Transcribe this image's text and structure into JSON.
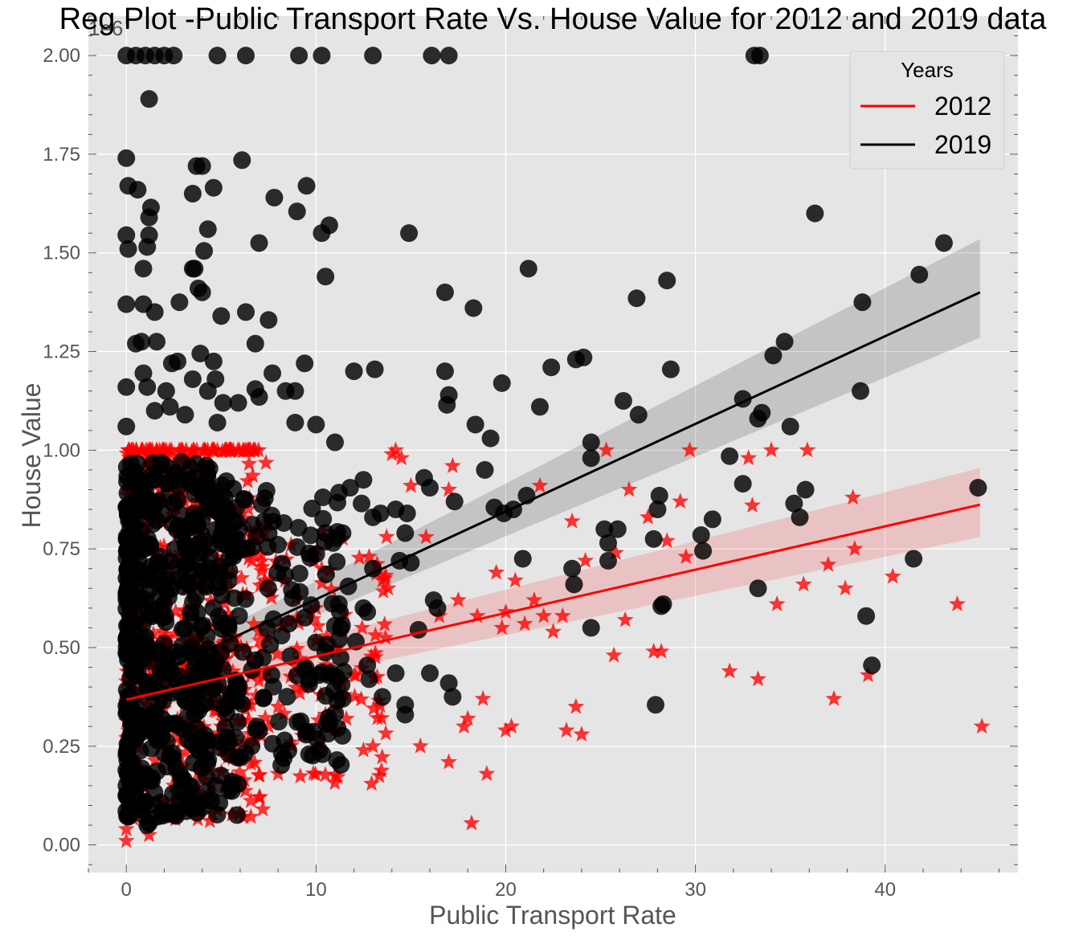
{
  "chart_data": {
    "type": "scatter",
    "title": "Reg Plot -Public Transport Rate Vs. House Value for 2012 and 2019 data",
    "xlabel": "Public Transport Rate",
    "ylabel": "House Value",
    "y_offset_label": "1e6",
    "xlim": [
      -2,
      47
    ],
    "ylim": [
      -70000,
      2100000
    ],
    "xticks": [
      0,
      10,
      20,
      30,
      40
    ],
    "xtick_labels": [
      "0",
      "10",
      "20",
      "30",
      "40"
    ],
    "yticks": [
      0,
      250000,
      500000,
      750000,
      1000000,
      1250000,
      1500000,
      1750000,
      2000000
    ],
    "ytick_labels": [
      "0.00",
      "0.25",
      "0.50",
      "0.75",
      "1.00",
      "1.25",
      "1.50",
      "1.75",
      "2.00"
    ],
    "grid": true,
    "legend": {
      "title": "Years",
      "position": "top-right",
      "entries": [
        "2012",
        "2019"
      ]
    },
    "colors": {
      "2012": "#ff0000",
      "2019": "#000000",
      "background": "#e5e5e5",
      "grid": "#ffffff"
    },
    "series": [
      {
        "name": "2012",
        "marker": "star",
        "color": "#ff0000",
        "regression": {
          "x": [
            0,
            45
          ],
          "y": [
            368000,
            862000
          ],
          "ci_lower": [
            333000,
            780000
          ],
          "ci_upper": [
            400000,
            955000
          ]
        },
        "points": [
          [
            0,
            10000
          ],
          [
            0,
            40000
          ],
          [
            1.2,
            25000
          ],
          [
            2.5,
            150000
          ],
          [
            3,
            200000
          ],
          [
            4,
            240000
          ],
          [
            5,
            300000
          ],
          [
            6,
            80000
          ],
          [
            6.5,
            250000
          ],
          [
            7,
            120000
          ],
          [
            7.5,
            300000
          ],
          [
            8,
            350000
          ],
          [
            8,
            180000
          ],
          [
            9,
            450000
          ],
          [
            9.5,
            280000
          ],
          [
            10,
            600000
          ],
          [
            10.3,
            700000
          ],
          [
            10.5,
            330000
          ],
          [
            11,
            500000
          ],
          [
            11.5,
            380000
          ],
          [
            12,
            430000
          ],
          [
            12.5,
            240000
          ],
          [
            12.8,
            730000
          ],
          [
            13,
            250000
          ],
          [
            13.5,
            670000
          ],
          [
            13.8,
            650000
          ],
          [
            14,
            990000
          ],
          [
            14.2,
            1000000
          ],
          [
            14.5,
            980000
          ],
          [
            15,
            910000
          ],
          [
            15.5,
            250000
          ],
          [
            15.8,
            780000
          ],
          [
            16.5,
            580000
          ],
          [
            17,
            900000
          ],
          [
            17,
            210000
          ],
          [
            17.2,
            960000
          ],
          [
            17.5,
            620000
          ],
          [
            17.8,
            300000
          ],
          [
            18,
            320000
          ],
          [
            18.2,
            55000
          ],
          [
            18.5,
            580000
          ],
          [
            18.8,
            370000
          ],
          [
            19,
            180000
          ],
          [
            19.5,
            690000
          ],
          [
            19.8,
            550000
          ],
          [
            20,
            290000
          ],
          [
            20,
            590000
          ],
          [
            20.3,
            300000
          ],
          [
            20.5,
            670000
          ],
          [
            21,
            560000
          ],
          [
            21.5,
            620000
          ],
          [
            21.8,
            910000
          ],
          [
            22,
            580000
          ],
          [
            22.5,
            540000
          ],
          [
            23,
            580000
          ],
          [
            23.2,
            290000
          ],
          [
            23.5,
            820000
          ],
          [
            23.7,
            350000
          ],
          [
            24,
            280000
          ],
          [
            24.2,
            720000
          ],
          [
            25.3,
            1000000
          ],
          [
            25.7,
            480000
          ],
          [
            25.8,
            740000
          ],
          [
            26.3,
            570000
          ],
          [
            26.5,
            900000
          ],
          [
            27.5,
            830000
          ],
          [
            27.8,
            490000
          ],
          [
            28.2,
            490000
          ],
          [
            28.5,
            770000
          ],
          [
            29.2,
            870000
          ],
          [
            29.5,
            730000
          ],
          [
            29.7,
            1000000
          ],
          [
            31.8,
            440000
          ],
          [
            32.8,
            980000
          ],
          [
            33,
            860000
          ],
          [
            33.3,
            420000
          ],
          [
            34,
            1000000
          ],
          [
            34.3,
            610000
          ],
          [
            35.7,
            660000
          ],
          [
            35.9,
            1000000
          ],
          [
            37,
            710000
          ],
          [
            37.3,
            370000
          ],
          [
            37.9,
            650000
          ],
          [
            38.3,
            880000
          ],
          [
            38.4,
            750000
          ],
          [
            39.1,
            430000
          ],
          [
            40.4,
            680000
          ],
          [
            43.8,
            610000
          ],
          [
            45.1,
            300000
          ]
        ]
      },
      {
        "name": "2019",
        "marker": "circle",
        "color": "#000000",
        "regression": {
          "x": [
            0,
            45
          ],
          "y": [
            400000,
            1400000
          ],
          "ci_lower": [
            380000,
            1285000
          ],
          "ci_upper": [
            420000,
            1535000
          ]
        },
        "points": [
          [
            0,
            2000000
          ],
          [
            0.5,
            2000000
          ],
          [
            1,
            2000000
          ],
          [
            1.5,
            2000000
          ],
          [
            2,
            2000000
          ],
          [
            2.5,
            2000000
          ],
          [
            4.8,
            2000000
          ],
          [
            6.3,
            2000000
          ],
          [
            9.1,
            2000000
          ],
          [
            10.3,
            2000000
          ],
          [
            13,
            2000000
          ],
          [
            16.1,
            2000000
          ],
          [
            17,
            2000000
          ],
          [
            33.1,
            2000000
          ],
          [
            33.4,
            2000000
          ],
          [
            1.2,
            1890000
          ],
          [
            0,
            1740000
          ],
          [
            3.7,
            1720000
          ],
          [
            4,
            1720000
          ],
          [
            6.1,
            1735000
          ],
          [
            0.1,
            1670000
          ],
          [
            0.6,
            1660000
          ],
          [
            3.5,
            1650000
          ],
          [
            4.6,
            1665000
          ],
          [
            7.8,
            1640000
          ],
          [
            9.5,
            1670000
          ],
          [
            1.3,
            1615000
          ],
          [
            1.2,
            1590000
          ],
          [
            9,
            1605000
          ],
          [
            0,
            1545000
          ],
          [
            1.2,
            1545000
          ],
          [
            4.3,
            1560000
          ],
          [
            10.3,
            1550000
          ],
          [
            10.7,
            1570000
          ],
          [
            14.9,
            1550000
          ],
          [
            0.1,
            1510000
          ],
          [
            1.1,
            1515000
          ],
          [
            4.1,
            1505000
          ],
          [
            7,
            1525000
          ],
          [
            0.9,
            1460000
          ],
          [
            3.5,
            1460000
          ],
          [
            3.6,
            1460000
          ],
          [
            10.5,
            1440000
          ],
          [
            21.2,
            1460000
          ],
          [
            0,
            1370000
          ],
          [
            0.9,
            1370000
          ],
          [
            1.5,
            1350000
          ],
          [
            2.8,
            1375000
          ],
          [
            3.8,
            1410000
          ],
          [
            4,
            1400000
          ],
          [
            5,
            1340000
          ],
          [
            6.3,
            1350000
          ],
          [
            7.5,
            1330000
          ],
          [
            16.8,
            1400000
          ],
          [
            18.3,
            1360000
          ],
          [
            26.9,
            1385000
          ],
          [
            28.5,
            1430000
          ],
          [
            38.8,
            1375000
          ],
          [
            41.8,
            1445000
          ],
          [
            43.1,
            1525000
          ],
          [
            36.3,
            1600000
          ],
          [
            0.5,
            1270000
          ],
          [
            0.8,
            1275000
          ],
          [
            1.6,
            1275000
          ],
          [
            3.9,
            1245000
          ],
          [
            6.8,
            1270000
          ],
          [
            4.6,
            1225000
          ],
          [
            2.4,
            1220000
          ],
          [
            2.7,
            1225000
          ],
          [
            9.4,
            1220000
          ],
          [
            12,
            1200000
          ],
          [
            13.1,
            1205000
          ],
          [
            16.8,
            1200000
          ],
          [
            22.4,
            1210000
          ],
          [
            23.7,
            1230000
          ],
          [
            24.1,
            1235000
          ],
          [
            28.7,
            1205000
          ],
          [
            34.1,
            1240000
          ],
          [
            34.7,
            1275000
          ],
          [
            0,
            1160000
          ],
          [
            0.9,
            1195000
          ],
          [
            1.1,
            1160000
          ],
          [
            2.1,
            1150000
          ],
          [
            3.5,
            1180000
          ],
          [
            4.3,
            1150000
          ],
          [
            4.7,
            1180000
          ],
          [
            5.1,
            1120000
          ],
          [
            5.9,
            1120000
          ],
          [
            6.8,
            1155000
          ],
          [
            7.0,
            1135000
          ],
          [
            7.7,
            1195000
          ],
          [
            8.4,
            1150000
          ],
          [
            8.9,
            1150000
          ],
          [
            16.9,
            1115000
          ],
          [
            17,
            1140000
          ],
          [
            19.8,
            1170000
          ],
          [
            21.8,
            1110000
          ],
          [
            26.2,
            1125000
          ],
          [
            27,
            1090000
          ],
          [
            32.5,
            1130000
          ],
          [
            33.3,
            1080000
          ],
          [
            33.5,
            1095000
          ],
          [
            35,
            1060000
          ],
          [
            38.7,
            1150000
          ],
          [
            0,
            1060000
          ],
          [
            1.5,
            1100000
          ],
          [
            2.3,
            1110000
          ],
          [
            3.1,
            1090000
          ],
          [
            4.8,
            1070000
          ],
          [
            8.9,
            1070000
          ],
          [
            10,
            1065000
          ],
          [
            11,
            1020000
          ],
          [
            18.4,
            1065000
          ],
          [
            19.2,
            1030000
          ],
          [
            24.5,
            1020000
          ],
          [
            24.5,
            980000
          ],
          [
            31.8,
            985000
          ],
          [
            14.2,
            850000
          ],
          [
            14.8,
            840000
          ],
          [
            15.7,
            930000
          ],
          [
            16,
            905000
          ],
          [
            17.3,
            870000
          ],
          [
            19.4,
            855000
          ],
          [
            18.9,
            950000
          ],
          [
            19.9,
            840000
          ],
          [
            20.4,
            850000
          ],
          [
            21.1,
            885000
          ],
          [
            20.9,
            725000
          ],
          [
            23.5,
            700000
          ],
          [
            23.6,
            660000
          ],
          [
            24.5,
            550000
          ],
          [
            25.2,
            800000
          ],
          [
            25.4,
            765000
          ],
          [
            25.4,
            720000
          ],
          [
            25.9,
            800000
          ],
          [
            27.8,
            775000
          ],
          [
            28,
            850000
          ],
          [
            28.1,
            885000
          ],
          [
            28.2,
            605000
          ],
          [
            28.3,
            610000
          ],
          [
            27.9,
            355000
          ],
          [
            30.3,
            785000
          ],
          [
            30.4,
            745000
          ],
          [
            30.9,
            825000
          ],
          [
            32.5,
            915000
          ],
          [
            33.3,
            650000
          ],
          [
            35.2,
            865000
          ],
          [
            35.5,
            830000
          ],
          [
            35.8,
            900000
          ],
          [
            39,
            580000
          ],
          [
            39.3,
            455000
          ],
          [
            41.5,
            725000
          ],
          [
            44.9,
            905000
          ],
          [
            10.5,
            790000
          ],
          [
            10.9,
            765000
          ],
          [
            11.4,
            790000
          ],
          [
            12.4,
            865000
          ],
          [
            12.5,
            925000
          ],
          [
            11.8,
            905000
          ],
          [
            13.0,
            830000
          ],
          [
            13.4,
            840000
          ],
          [
            14.4,
            720000
          ],
          [
            15.0,
            715000
          ],
          [
            14.7,
            790000
          ],
          [
            16.2,
            620000
          ],
          [
            16.4,
            600000
          ],
          [
            15.4,
            545000
          ],
          [
            16.0,
            435000
          ],
          [
            14.2,
            435000
          ],
          [
            13.0,
            700000
          ],
          [
            12.5,
            600000
          ],
          [
            12.7,
            590000
          ],
          [
            11.7,
            655000
          ],
          [
            12.1,
            515000
          ],
          [
            12.7,
            455000
          ],
          [
            13.5,
            375000
          ],
          [
            12.8,
            420000
          ],
          [
            14.7,
            355000
          ],
          [
            14.7,
            330000
          ],
          [
            17.2,
            375000
          ],
          [
            17,
            410000
          ],
          [
            11.4,
            370000
          ],
          [
            11.1,
            215000
          ],
          [
            8.3,
            220000
          ],
          [
            6.9,
            300000
          ],
          [
            6.6,
            250000
          ],
          [
            5.5,
            150000
          ],
          [
            3.3,
            120000
          ],
          [
            1.1,
            50000
          ],
          [
            1.2,
            55000
          ]
        ]
      }
    ]
  }
}
